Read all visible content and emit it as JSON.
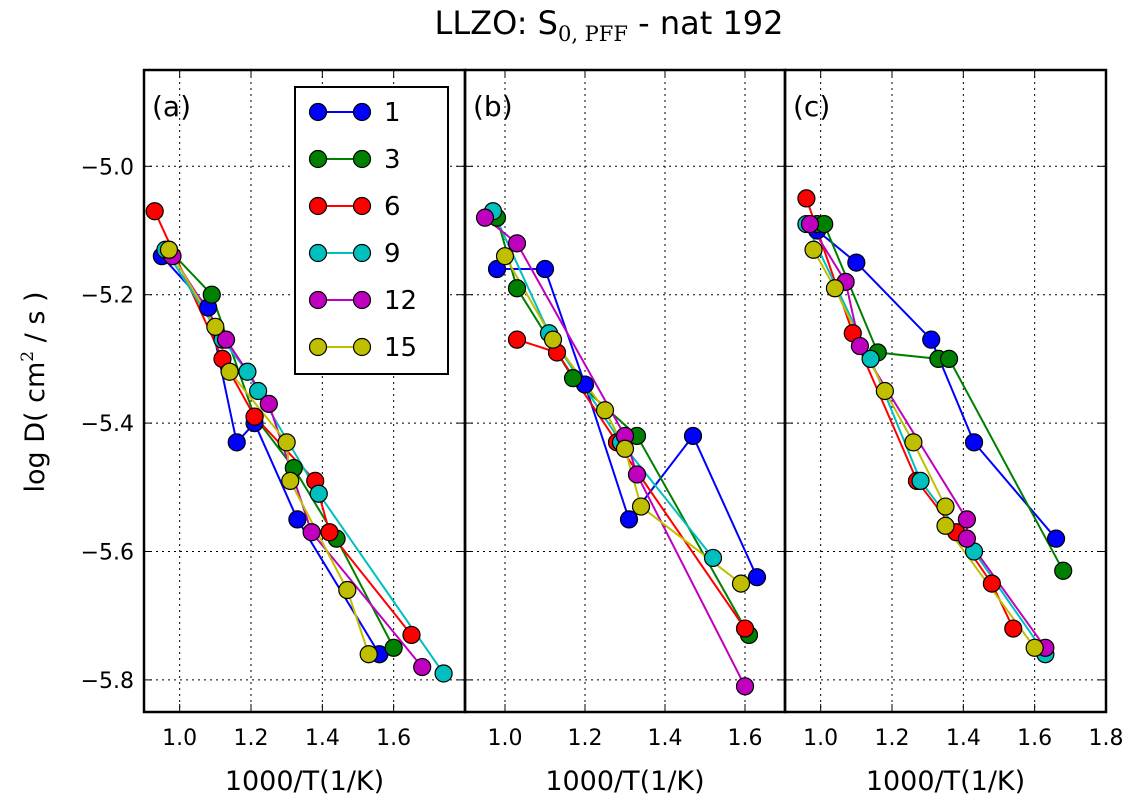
{
  "chart_data": {
    "type": "line",
    "title_main": "LLZO: S",
    "title_sub": "0, PFF",
    "title_rest": "- nat 192",
    "ylabel_pre": "log D( cm",
    "ylabel_sup": "2",
    "ylabel_post": " / s )",
    "xlabel": "1000/T(1/K)",
    "ylim": [
      -5.85,
      -4.85
    ],
    "yticks": [
      -5.0,
      -5.2,
      -5.4,
      -5.6,
      -5.8
    ],
    "ytick_labels": [
      "−5.0",
      "−5.2",
      "−5.4",
      "−5.6",
      "−5.8"
    ],
    "grid": true,
    "legend_location": "upper-right of panel (a)",
    "series_colors": {
      "1": "#0000ff",
      "3": "#008000",
      "6": "#ff0000",
      "9": "#00bfbf",
      "12": "#bf00bf",
      "15": "#bfbf00"
    },
    "legend": [
      "1",
      "3",
      "6",
      "9",
      "12",
      "15"
    ],
    "panels": [
      {
        "label": "(a)",
        "xlim": [
          0.9,
          1.8
        ],
        "xticks": [
          1.0,
          1.2,
          1.4,
          1.6
        ],
        "xtick_labels": [
          "1.0",
          "1.2",
          "1.4",
          "1.6"
        ],
        "series": [
          {
            "name": "1",
            "x": [
              0.95,
              1.08,
              1.16,
              1.21,
              1.33,
              1.56
            ],
            "y": [
              -5.14,
              -5.22,
              -5.43,
              -5.4,
              -5.55,
              -5.76
            ]
          },
          {
            "name": "3",
            "x": [
              0.97,
              1.09,
              1.21,
              1.32,
              1.44,
              1.6
            ],
            "y": [
              -5.13,
              -5.2,
              -5.39,
              -5.47,
              -5.58,
              -5.75
            ]
          },
          {
            "name": "6",
            "x": [
              0.93,
              1.12,
              1.21,
              1.38,
              1.42,
              1.65
            ],
            "y": [
              -5.07,
              -5.3,
              -5.39,
              -5.49,
              -5.57,
              -5.73
            ]
          },
          {
            "name": "9",
            "x": [
              0.96,
              1.12,
              1.19,
              1.22,
              1.39,
              1.74
            ],
            "y": [
              -5.13,
              -5.27,
              -5.32,
              -5.35,
              -5.51,
              -5.79
            ]
          },
          {
            "name": "12",
            "x": [
              0.98,
              1.13,
              1.25,
              1.37,
              1.68
            ],
            "y": [
              -5.14,
              -5.27,
              -5.37,
              -5.57,
              -5.78
            ]
          },
          {
            "name": "15",
            "x": [
              0.97,
              1.1,
              1.14,
              1.3,
              1.31,
              1.47,
              1.53
            ],
            "y": [
              -5.13,
              -5.25,
              -5.32,
              -5.43,
              -5.49,
              -5.66,
              -5.76
            ]
          }
        ]
      },
      {
        "label": "(b)",
        "xlim": [
          0.9,
          1.7
        ],
        "xticks": [
          1.0,
          1.2,
          1.4,
          1.6
        ],
        "xtick_labels": [
          "1.0",
          "1.2",
          "1.4",
          "1.6"
        ],
        "series": [
          {
            "name": "1",
            "x": [
              0.98,
              1.1,
              1.2,
              1.31,
              1.47,
              1.63
            ],
            "y": [
              -5.16,
              -5.16,
              -5.34,
              -5.55,
              -5.42,
              -5.64
            ]
          },
          {
            "name": "3",
            "x": [
              0.98,
              1.03,
              1.17,
              1.33,
              1.61
            ],
            "y": [
              -5.08,
              -5.19,
              -5.33,
              -5.42,
              -5.73
            ]
          },
          {
            "name": "6",
            "x": [
              1.03,
              1.13,
              1.28,
              1.6
            ],
            "y": [
              -5.27,
              -5.29,
              -5.43,
              -5.72
            ]
          },
          {
            "name": "9",
            "x": [
              0.97,
              1.11,
              1.29,
              1.52
            ],
            "y": [
              -5.07,
              -5.26,
              -5.43,
              -5.61
            ]
          },
          {
            "name": "12",
            "x": [
              0.95,
              1.03,
              1.3,
              1.33,
              1.6
            ],
            "y": [
              -5.08,
              -5.12,
              -5.42,
              -5.48,
              -5.81
            ]
          },
          {
            "name": "15",
            "x": [
              1.0,
              1.12,
              1.25,
              1.3,
              1.34,
              1.59
            ],
            "y": [
              -5.14,
              -5.27,
              -5.38,
              -5.44,
              -5.53,
              -5.65
            ]
          }
        ]
      },
      {
        "label": "(c)",
        "xlim": [
          0.9,
          1.8
        ],
        "xticks": [
          1.0,
          1.2,
          1.4,
          1.6,
          1.8
        ],
        "xtick_labels": [
          "1.0",
          "1.2",
          "1.4",
          "1.6",
          "1.8"
        ],
        "series": [
          {
            "name": "1",
            "x": [
              0.99,
              1.1,
              1.31,
              1.43,
              1.66
            ],
            "y": [
              -5.1,
              -5.15,
              -5.27,
              -5.43,
              -5.58
            ]
          },
          {
            "name": "3",
            "x": [
              0.99,
              1.01,
              1.16,
              1.33,
              1.36,
              1.68
            ],
            "y": [
              -5.09,
              -5.09,
              -5.29,
              -5.3,
              -5.3,
              -5.63
            ]
          },
          {
            "name": "6",
            "x": [
              0.96,
              1.09,
              1.27,
              1.38,
              1.48,
              1.54
            ],
            "y": [
              -5.05,
              -5.26,
              -5.49,
              -5.57,
              -5.65,
              -5.72
            ]
          },
          {
            "name": "9",
            "x": [
              0.96,
              1.14,
              1.28,
              1.43,
              1.63
            ],
            "y": [
              -5.09,
              -5.3,
              -5.49,
              -5.6,
              -5.76
            ]
          },
          {
            "name": "12",
            "x": [
              0.97,
              1.07,
              1.11,
              1.41,
              1.41,
              1.63
            ],
            "y": [
              -5.09,
              -5.18,
              -5.28,
              -5.55,
              -5.58,
              -5.75
            ]
          },
          {
            "name": "15",
            "x": [
              0.98,
              1.04,
              1.18,
              1.26,
              1.35,
              1.35,
              1.6
            ],
            "y": [
              -5.13,
              -5.19,
              -5.35,
              -5.43,
              -5.53,
              -5.56,
              -5.75
            ]
          }
        ]
      }
    ]
  }
}
